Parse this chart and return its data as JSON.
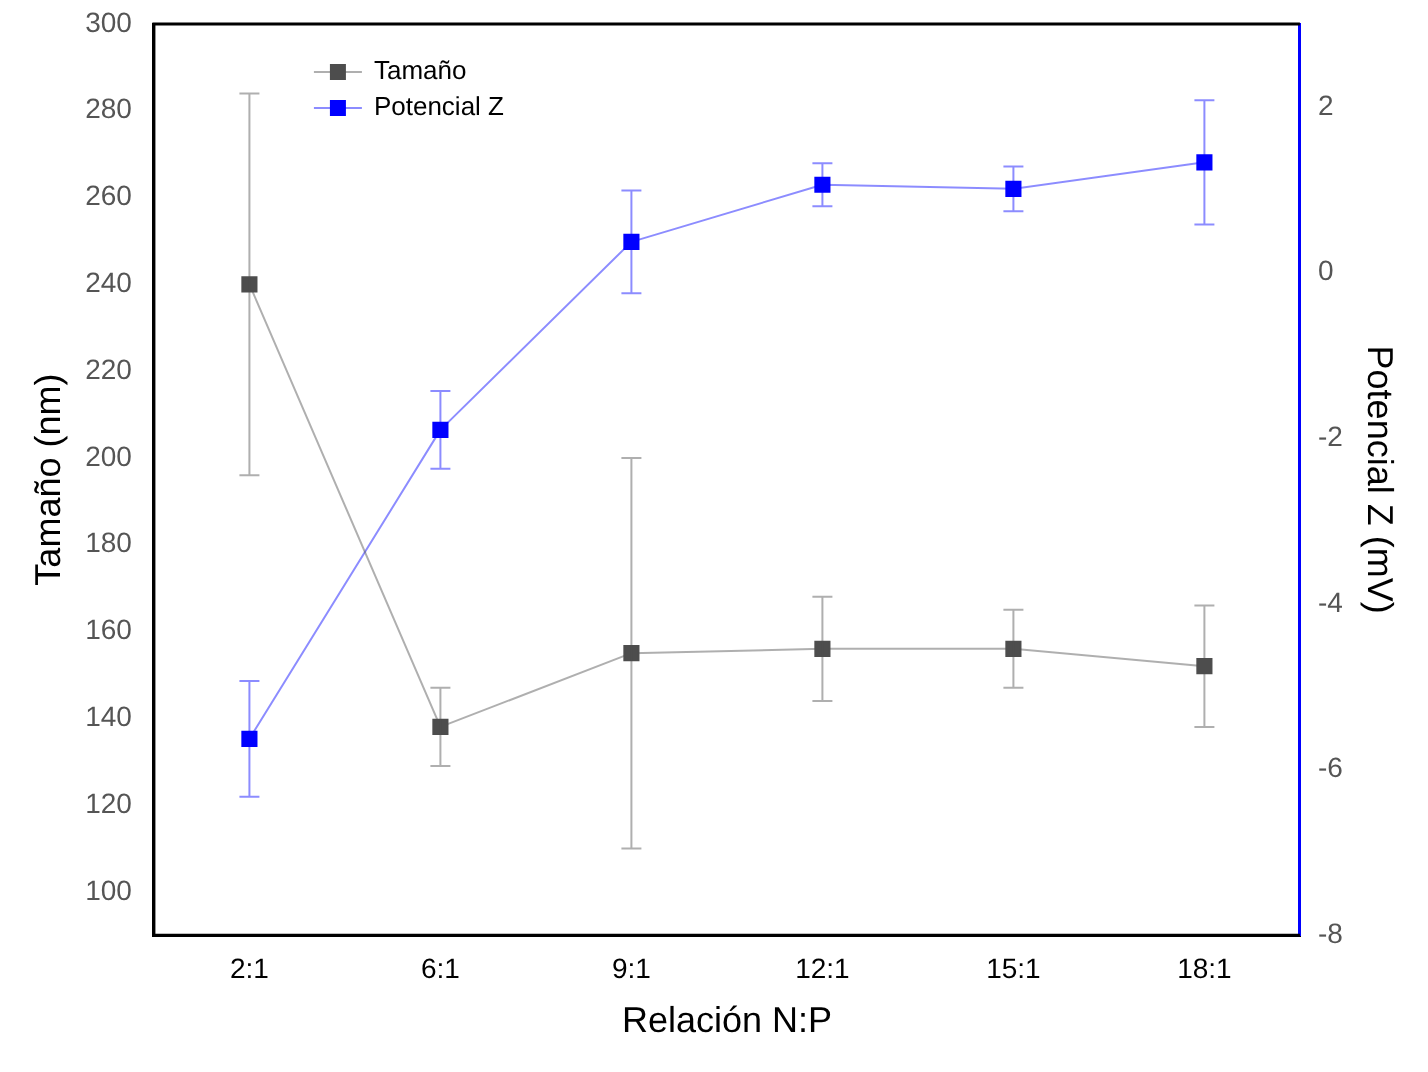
{
  "chart_data": {
    "type": "line",
    "xlabel": "Relación N:P",
    "ylabel": "Tamaño (nm)",
    "y2label": "Potencial Z (mV)",
    "categories": [
      "2:1",
      "6:1",
      "9:1",
      "12:1",
      "15:1",
      "18:1"
    ],
    "series": [
      {
        "name": "Tamaño",
        "color": "#4d4d4d",
        "values": [
          240,
          138,
          155,
          156,
          156,
          152
        ],
        "errors": [
          44,
          9,
          45,
          12,
          9,
          14
        ]
      },
      {
        "name": "Potencial Z",
        "color": "#0000ff",
        "axis": "y2",
        "values": [
          -5.63,
          -1.9,
          0.37,
          1.06,
          1.01,
          1.33
        ],
        "errors": [
          0.7,
          0.47,
          0.62,
          0.26,
          0.27,
          0.75
        ]
      }
    ],
    "ylim": [
      90,
      300
    ],
    "yticks": [
      100,
      120,
      140,
      160,
      180,
      200,
      220,
      240,
      260,
      280,
      300
    ],
    "y2lim": [
      -8,
      3
    ],
    "y2ticks": [
      -8,
      -6,
      -4,
      -2,
      0,
      2
    ],
    "grid": false,
    "legend": "top left",
    "marker": "square",
    "line_style": "solid"
  }
}
